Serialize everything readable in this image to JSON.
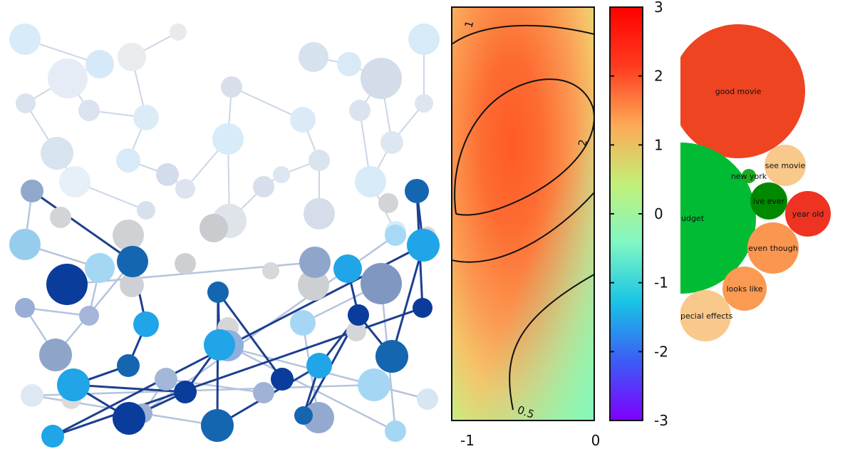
{
  "chart_data": [
    {
      "type": "heatmap",
      "title": "",
      "xlabel": "",
      "ylabel": "",
      "x_ticks": [
        "-1",
        "0"
      ],
      "xlim": [
        -1.12,
        0
      ],
      "contour_labels": [
        "1",
        "2",
        "0.5"
      ],
      "colorbar": {
        "ticks": [
          "3",
          "2",
          "1",
          "0",
          "-1",
          "-2",
          "-3"
        ],
        "min": -3,
        "max": 3,
        "colors": [
          "#7f00ff",
          "#3c5cf6",
          "#18c4e4",
          "#7ff7c4",
          "#c2f079",
          "#fdaa55",
          "#ff3b1f",
          "#ff0000"
        ]
      },
      "peak_value": 2.3,
      "grid": false
    },
    {
      "type": "bubble",
      "title": "",
      "bubbles": [
        {
          "label": "good movie",
          "size": 100,
          "color": "#ee4422"
        },
        {
          "label": "udget",
          "size": 68,
          "color": "#00bb33"
        },
        {
          "label": "see movie",
          "size": 22,
          "color": "#f8c98a"
        },
        {
          "label": "new york",
          "size": 5,
          "color": "#22aa22"
        },
        {
          "label": "ive ever",
          "size": 16,
          "color": "#008800"
        },
        {
          "label": "year old",
          "size": 20,
          "color": "#ee3322"
        },
        {
          "label": "even though",
          "size": 24,
          "color": "#fb9650"
        },
        {
          "label": "looks like",
          "size": 21,
          "color": "#fb9a52"
        },
        {
          "label": "pecial effects",
          "size": 25,
          "color": "#f8c98a"
        }
      ]
    }
  ],
  "illustration": {
    "subject": "molecule-network",
    "colors": [
      "#0a3c9c",
      "#1566b0",
      "#1fa5e8",
      "#a8dcf6",
      "#c8d6ea"
    ]
  }
}
